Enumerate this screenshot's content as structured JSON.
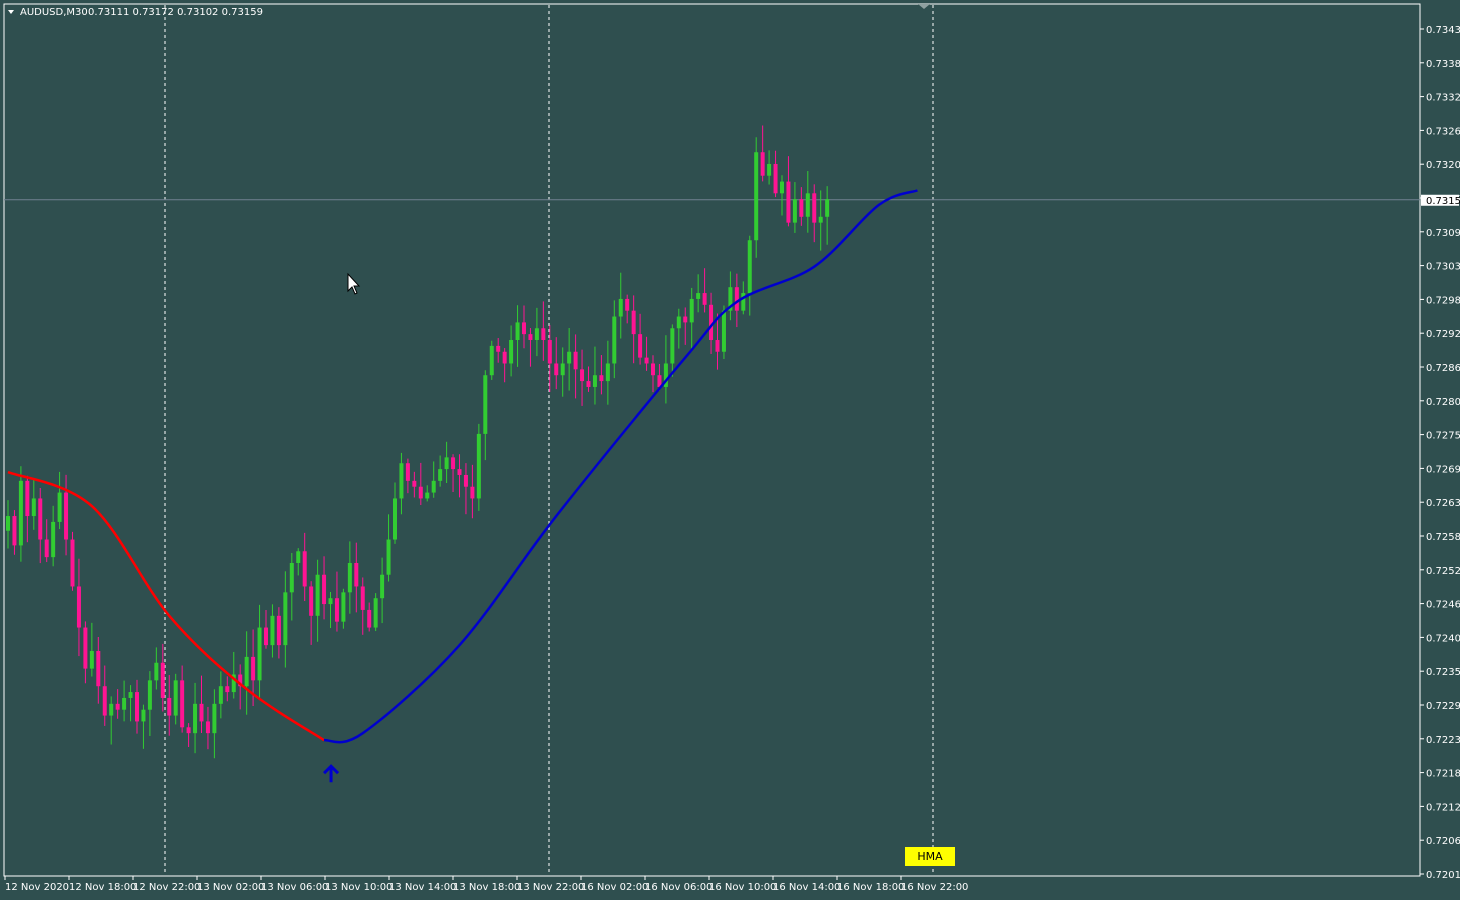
{
  "window": {
    "symbol_caption": "AUDUSD,M30",
    "ohlc_caption": "0.73111 0.73172 0.73102 0.73159",
    "indicator_tag": "HMA"
  },
  "colors": {
    "background": "#2f4f4f",
    "frame": "#ffffff",
    "bull_candle": "#32cd32",
    "bear_candle": "#ff1493",
    "hma_down": "#ff0000",
    "hma_up": "#0000cd",
    "signal_arrow": "#0000cd",
    "grid_vertical": "#ffffff",
    "bid_line": "#708090",
    "tag_bg": "#ffff00"
  },
  "chart_data": {
    "type": "candlestick",
    "symbol": "AUDUSD",
    "timeframe": "M30",
    "ylim": [
      0.7201,
      0.7345
    ],
    "y_ticks": [
      "0.73435",
      "0.73380",
      "0.73320",
      "0.73265",
      "0.73205",
      "0.73155",
      "0.73095",
      "0.73035",
      "0.72980",
      "0.72920",
      "0.72865",
      "0.72805",
      "0.72750",
      "0.72695",
      "0.72635",
      "0.72580",
      "0.72520",
      "0.72465",
      "0.72405",
      "0.72350",
      "0.72295",
      "0.72235",
      "0.72180",
      "0.72120",
      "0.72065",
      "0.72010"
    ],
    "current_price": "0.73159",
    "x_ticks": [
      "12 Nov 2020",
      "12 Nov 18:00",
      "12 Nov 22:00",
      "13 Nov 02:00",
      "13 Nov 06:00",
      "13 Nov 10:00",
      "13 Nov 14:00",
      "13 Nov 18:00",
      "13 Nov 22:00",
      "16 Nov 02:00",
      "16 Nov 06:00",
      "16 Nov 10:00",
      "16 Nov 14:00",
      "16 Nov 18:00",
      "16 Nov 22:00"
    ],
    "period_separators": [
      "12 Nov 22:00",
      "13 Nov 22:00",
      "16 Nov 22:00"
    ],
    "grid": false,
    "close_path": [
      0.7262,
      0.7257,
      0.7268,
      0.7262,
      0.7265,
      0.7258,
      0.7255,
      0.7261,
      0.7266,
      0.7258,
      0.725,
      0.7243,
      0.7236,
      0.7239,
      0.7233,
      0.7228,
      0.723,
      0.7229,
      0.7231,
      0.7232,
      0.7227,
      0.7229,
      0.7234,
      0.7237,
      0.7231,
      0.7228,
      0.7234,
      0.7226,
      0.7225,
      0.723,
      0.7227,
      0.7225,
      0.723,
      0.7233,
      0.7232,
      0.7235,
      0.7233,
      0.7238,
      0.7234,
      0.7243,
      0.724,
      0.7245,
      0.724,
      0.7249,
      0.7254,
      0.7256,
      0.725,
      0.7245,
      0.7252,
      0.7247,
      0.7248,
      0.7244,
      0.7249,
      0.7254,
      0.725,
      0.7246,
      0.7243,
      0.7248,
      0.7252,
      0.7258,
      0.7265,
      0.7271,
      0.7268,
      0.7267,
      0.7265,
      0.7266,
      0.7268,
      0.727,
      0.7272,
      0.727,
      0.7269,
      0.7267,
      0.7265,
      0.7276,
      0.7286,
      0.7291,
      0.729,
      0.7288,
      0.7292,
      0.7295,
      0.7293,
      0.7292,
      0.7294,
      0.7292,
      0.7288,
      0.7286,
      0.7288,
      0.729,
      0.7287,
      0.7285,
      0.7284,
      0.7286,
      0.7285,
      0.7288,
      0.7296,
      0.7299,
      0.7297,
      0.7293,
      0.7289,
      0.7288,
      0.7286,
      0.7284,
      0.7288,
      0.7294,
      0.7296,
      0.7295,
      0.7299,
      0.73,
      0.7298,
      0.7292,
      0.729,
      0.7297,
      0.7301,
      0.7297,
      0.73,
      0.7309,
      0.7324,
      0.732,
      0.7322,
      0.7317,
      0.7319,
      0.7312,
      0.7316,
      0.7313,
      0.7317,
      0.7312,
      0.7313,
      0.7316
    ],
    "hma_down": [
      [
        0,
        0.72695
      ],
      [
        13,
        0.72637
      ],
      [
        25,
        0.7245
      ],
      [
        37,
        0.72325
      ],
      [
        49,
        0.72238
      ]
    ],
    "hma_up": [
      [
        49,
        0.72238
      ],
      [
        55,
        0.7225
      ],
      [
        70,
        0.724
      ],
      [
        85,
        0.7262
      ],
      [
        105,
        0.7289
      ],
      [
        113,
        0.72985
      ],
      [
        125,
        0.73045
      ],
      [
        135,
        0.7315
      ],
      [
        141,
        0.73175
      ]
    ],
    "signal_arrow": {
      "direction": "up",
      "bar": 49,
      "price": 0.7218
    }
  }
}
